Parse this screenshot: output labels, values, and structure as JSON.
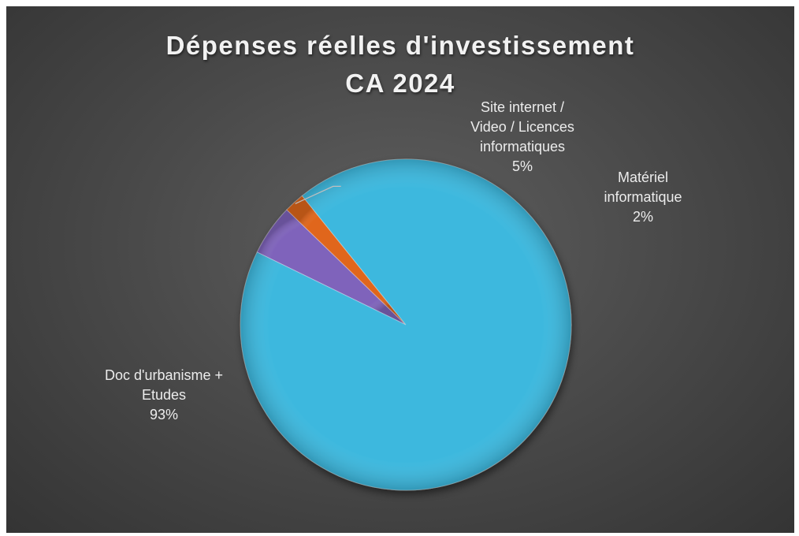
{
  "chart_data": {
    "type": "pie",
    "title": "Dépenses réelles d'investissement",
    "subtitle": "CA 2024",
    "slices": [
      {
        "label_lines": [
          "Site internet /",
          "Video / Licences",
          "informatiques"
        ],
        "percent_label": "5%",
        "value": 5,
        "color": "#7f63bb"
      },
      {
        "label_lines": [
          "Matériel",
          "informatique"
        ],
        "percent_label": "2%",
        "value": 2,
        "color": "#e0661c"
      },
      {
        "label_lines": [
          "Doc d'urbanisme +",
          "Etudes"
        ],
        "percent_label": "93%",
        "value": 93,
        "color": "#3cb8de"
      }
    ]
  }
}
